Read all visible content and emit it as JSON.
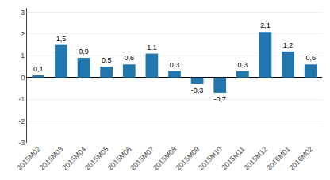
{
  "chart_data": {
    "type": "bar",
    "categories": [
      "2015M02",
      "2015M03",
      "2015M04",
      "2015M05",
      "2015M06",
      "2015M07",
      "2015M08",
      "2015M09",
      "2015M10",
      "2015M11",
      "2015M12",
      "2016M01",
      "2016M02"
    ],
    "values": [
      0.1,
      1.5,
      0.9,
      0.5,
      0.6,
      1.1,
      0.3,
      -0.3,
      -0.7,
      0.3,
      2.1,
      1.2,
      0.6
    ],
    "value_labels": [
      "0,1",
      "1,5",
      "0,9",
      "0,5",
      "0,6",
      "1,1",
      "0,3",
      "-0,3",
      "-0,7",
      "0,3",
      "2,1",
      "1,2",
      "0,6"
    ],
    "data_labels": true,
    "color": "#2176ae",
    "ylim": [
      -3,
      3.2
    ],
    "yticks": [
      -3,
      -2,
      -1,
      0,
      1,
      2,
      3
    ],
    "grid": true
  }
}
